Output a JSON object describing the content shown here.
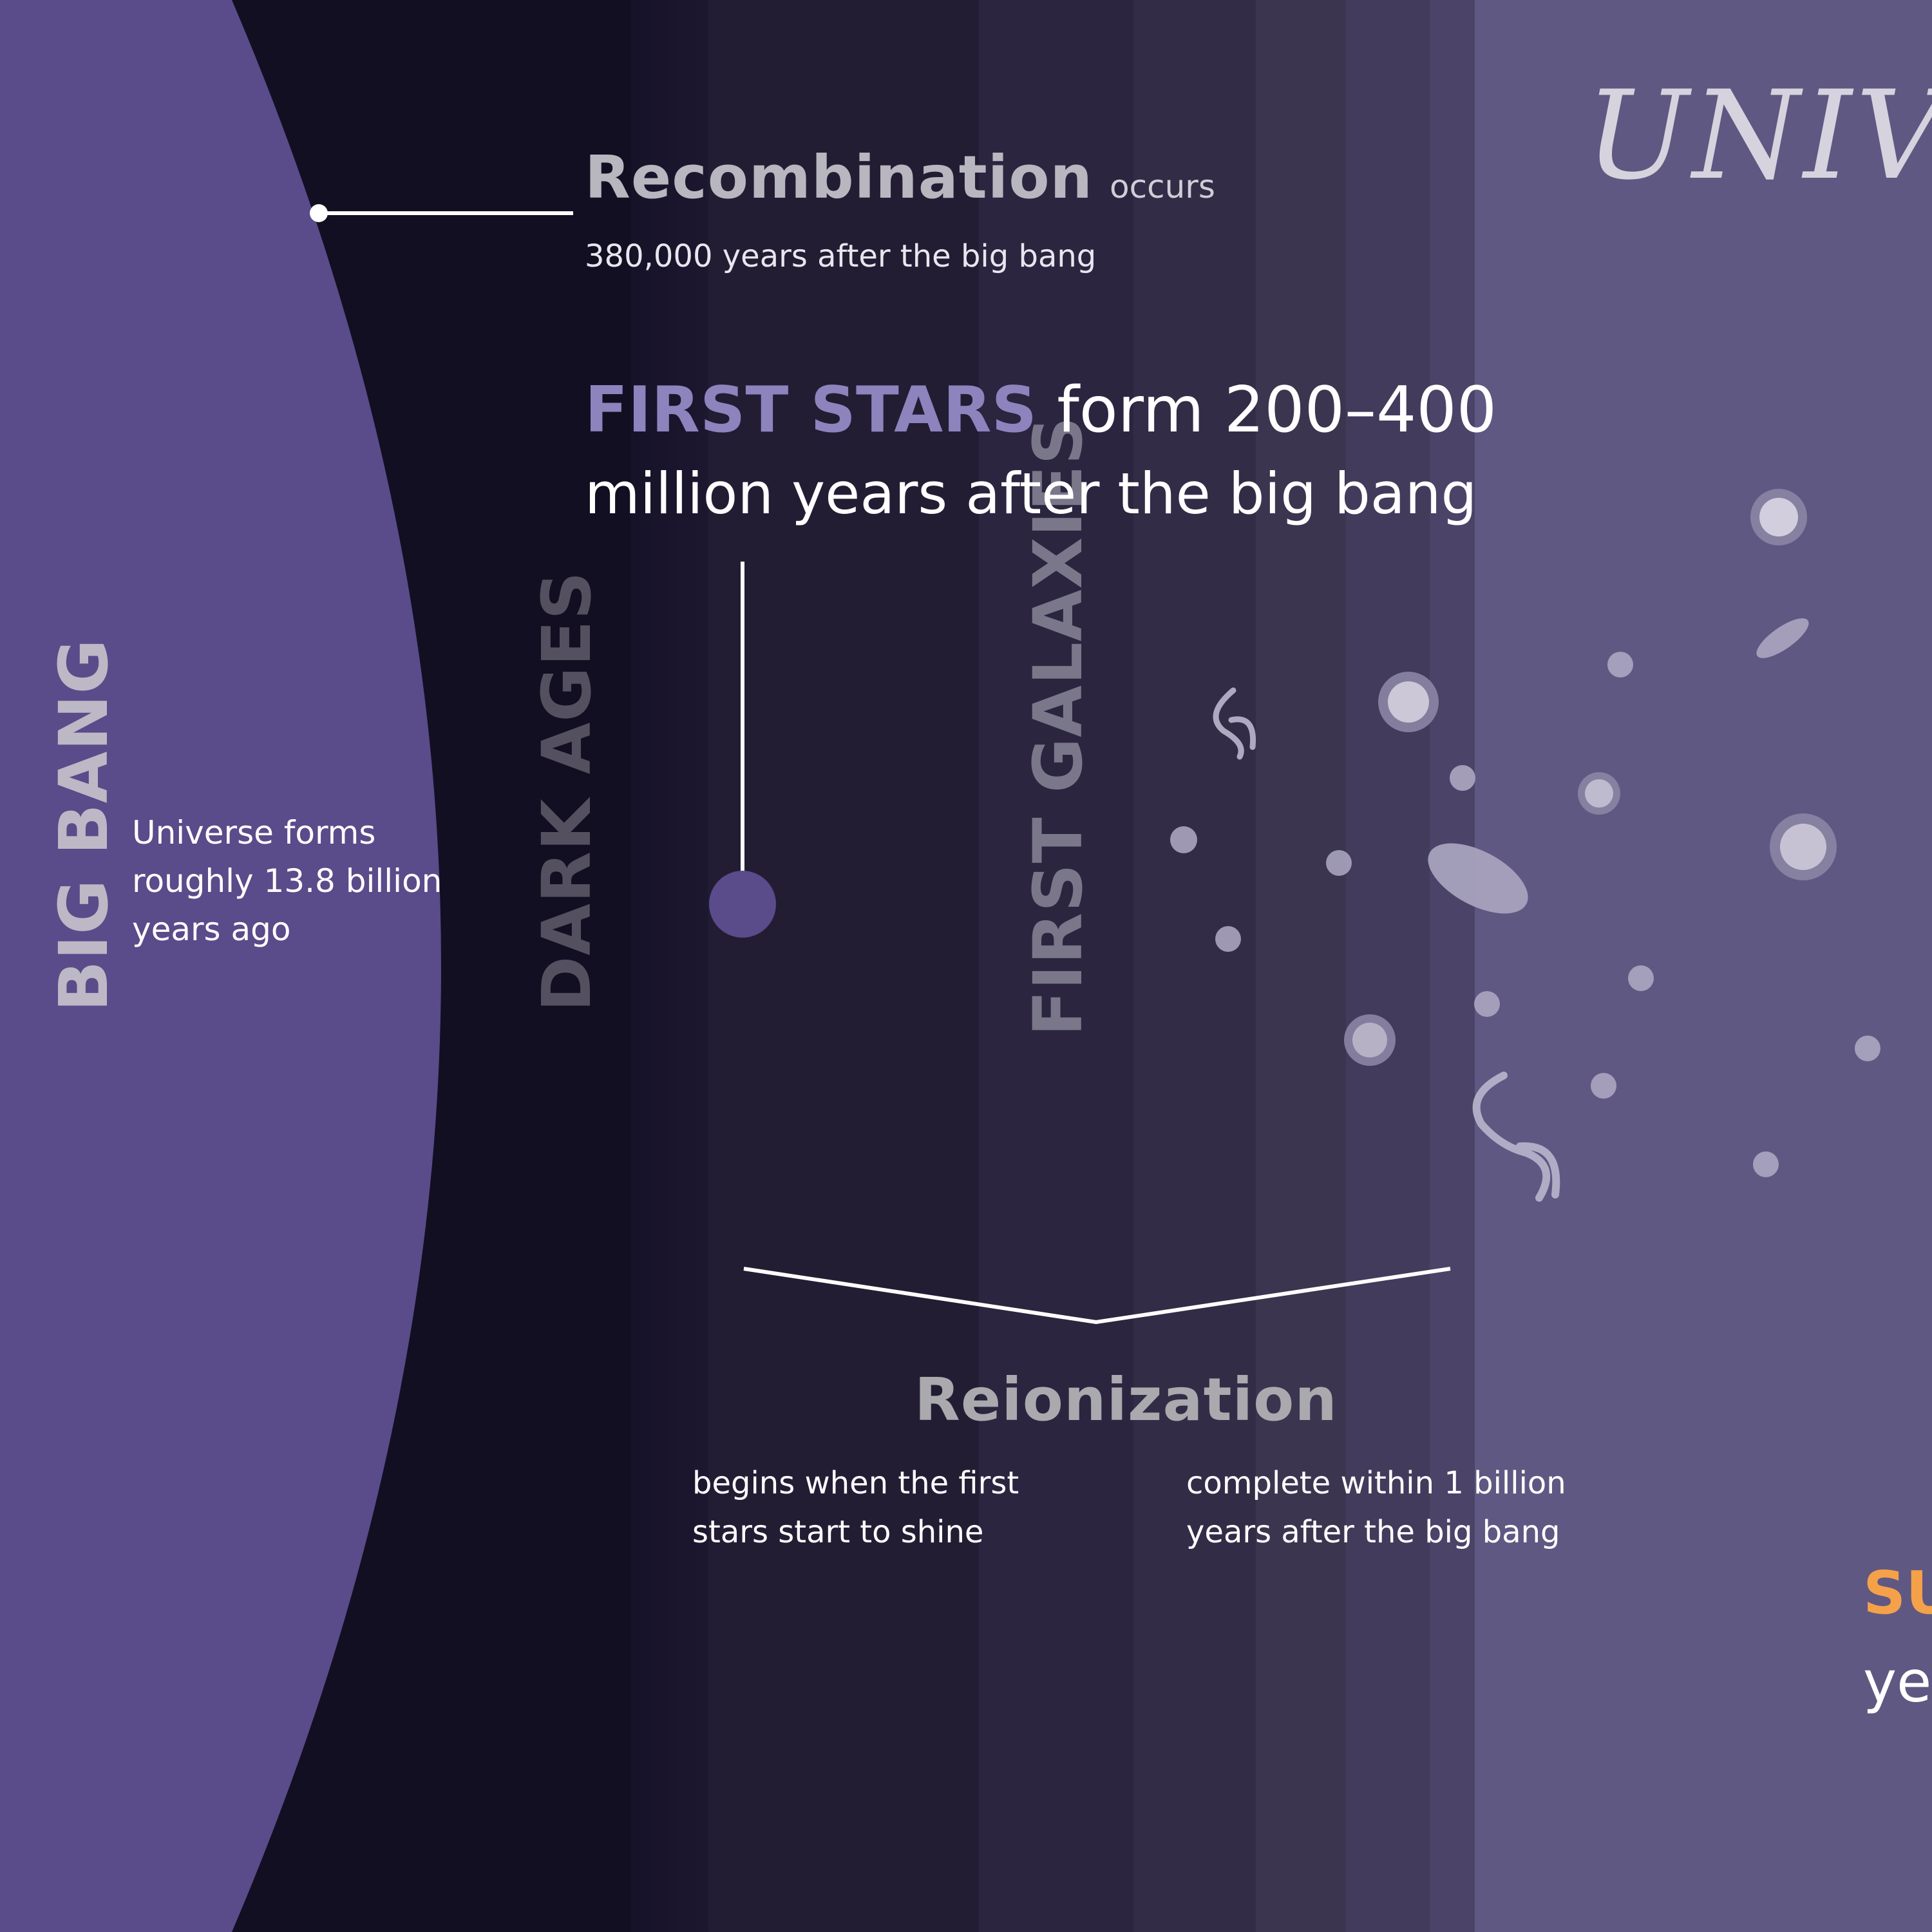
{
  "colors": {
    "big_bang_purple": "#5a4b8a",
    "dark_ages": "#120f22",
    "first_stars_accent": "#8d83bd",
    "later_universe": "#5f5882",
    "orange_accent": "#f4a14a",
    "label_grey": "#aaa9ae"
  },
  "title_fragment": "UNIVI",
  "big_bang": {
    "label": "BIG BANG",
    "desc_line1": "Universe forms",
    "desc_line2": "roughly 13.8 billion",
    "desc_line3": "years ago"
  },
  "dark_ages": {
    "label": "DARK AGES"
  },
  "first_galaxies": {
    "label": "FIRST GALAXIES"
  },
  "recombination": {
    "title": "Recombination",
    "suffix": "occurs",
    "subtitle": "380,000 years after the big bang"
  },
  "first_stars": {
    "highlight": "FIRST STARS",
    "line1_rest": " form 200–400",
    "line2": "million years after the big bang"
  },
  "reionization": {
    "title": "Reionization",
    "left_line1": "begins when the first",
    "left_line2": "stars start to shine",
    "right_line1": "complete within 1 billion",
    "right_line2": "years after the big bang"
  },
  "cut_off_fragments": {
    "orange": "SU",
    "white": "ye"
  },
  "icons": [
    "recombination-marker-dot",
    "first-stars-marker-dot",
    "galaxy-dot",
    "spiral-galaxy-icon",
    "elliptical-galaxy-icon"
  ]
}
